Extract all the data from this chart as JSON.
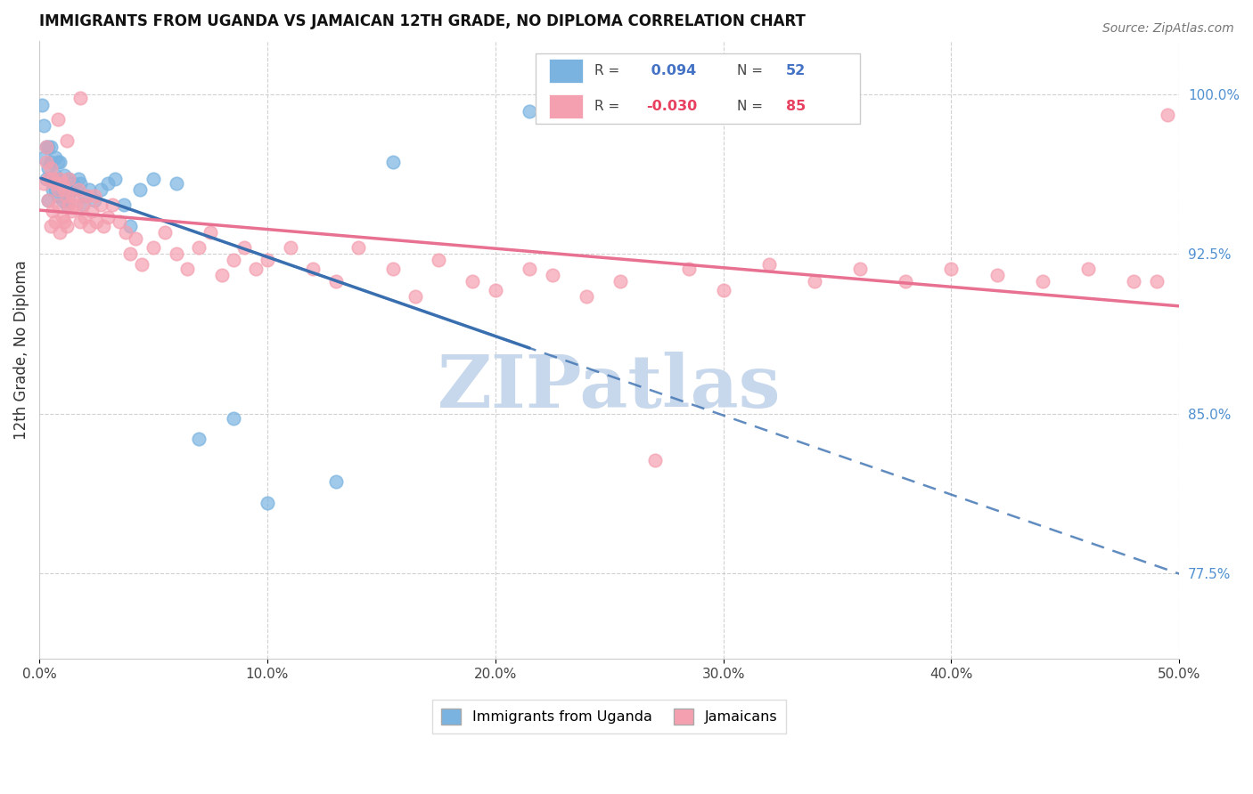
{
  "title": "IMMIGRANTS FROM UGANDA VS JAMAICAN 12TH GRADE, NO DIPLOMA CORRELATION CHART",
  "source": "Source: ZipAtlas.com",
  "ylabel_label": "12th Grade, No Diploma",
  "legend_label1": "Immigrants from Uganda",
  "legend_label2": "Jamaicans",
  "color_uganda": "#7ab3e0",
  "color_jamaica": "#f4a0b0",
  "color_trendline_uganda": "#3a6faf",
  "color_trendline_jamaica": "#e87090",
  "watermark_color": "#c8d8ec",
  "watermark_text": "ZIPatlas",
  "xmin": 0.0,
  "xmax": 0.5,
  "ymin": 0.735,
  "ymax": 1.025,
  "uganda_x": [
    0.001,
    0.002,
    0.002,
    0.003,
    0.003,
    0.004,
    0.004,
    0.004,
    0.005,
    0.005,
    0.005,
    0.006,
    0.006,
    0.007,
    0.007,
    0.007,
    0.008,
    0.008,
    0.008,
    0.009,
    0.009,
    0.01,
    0.01,
    0.011,
    0.011,
    0.012,
    0.012,
    0.013,
    0.013,
    0.014,
    0.015,
    0.016,
    0.017,
    0.018,
    0.019,
    0.02,
    0.022,
    0.024,
    0.027,
    0.03,
    0.033,
    0.037,
    0.04,
    0.044,
    0.05,
    0.06,
    0.07,
    0.085,
    0.1,
    0.13,
    0.155,
    0.215
  ],
  "uganda_y": [
    0.995,
    0.985,
    0.97,
    0.975,
    0.96,
    0.975,
    0.965,
    0.95,
    0.96,
    0.968,
    0.975,
    0.96,
    0.955,
    0.962,
    0.955,
    0.97,
    0.952,
    0.96,
    0.968,
    0.958,
    0.968,
    0.95,
    0.958,
    0.955,
    0.962,
    0.948,
    0.955,
    0.95,
    0.96,
    0.955,
    0.958,
    0.955,
    0.96,
    0.958,
    0.948,
    0.952,
    0.955,
    0.95,
    0.955,
    0.958,
    0.96,
    0.948,
    0.938,
    0.955,
    0.96,
    0.958,
    0.838,
    0.848,
    0.808,
    0.818,
    0.968,
    0.992
  ],
  "jamaica_x": [
    0.002,
    0.003,
    0.003,
    0.004,
    0.004,
    0.005,
    0.005,
    0.006,
    0.006,
    0.007,
    0.007,
    0.008,
    0.008,
    0.009,
    0.009,
    0.01,
    0.01,
    0.011,
    0.011,
    0.012,
    0.012,
    0.013,
    0.013,
    0.014,
    0.015,
    0.016,
    0.017,
    0.018,
    0.019,
    0.02,
    0.021,
    0.022,
    0.023,
    0.024,
    0.025,
    0.027,
    0.028,
    0.03,
    0.032,
    0.035,
    0.038,
    0.04,
    0.042,
    0.045,
    0.05,
    0.055,
    0.06,
    0.065,
    0.07,
    0.075,
    0.08,
    0.085,
    0.09,
    0.095,
    0.1,
    0.11,
    0.12,
    0.13,
    0.14,
    0.155,
    0.165,
    0.175,
    0.19,
    0.2,
    0.215,
    0.225,
    0.24,
    0.255,
    0.27,
    0.285,
    0.3,
    0.32,
    0.34,
    0.36,
    0.38,
    0.4,
    0.42,
    0.44,
    0.46,
    0.48,
    0.49,
    0.495,
    0.008,
    0.012,
    0.018
  ],
  "jamaica_y": [
    0.958,
    0.968,
    0.975,
    0.96,
    0.95,
    0.965,
    0.938,
    0.96,
    0.945,
    0.958,
    0.94,
    0.955,
    0.948,
    0.96,
    0.935,
    0.958,
    0.942,
    0.955,
    0.94,
    0.952,
    0.938,
    0.948,
    0.96,
    0.945,
    0.952,
    0.948,
    0.955,
    0.94,
    0.948,
    0.942,
    0.952,
    0.938,
    0.945,
    0.952,
    0.94,
    0.948,
    0.938,
    0.942,
    0.948,
    0.94,
    0.935,
    0.925,
    0.932,
    0.92,
    0.928,
    0.935,
    0.925,
    0.918,
    0.928,
    0.935,
    0.915,
    0.922,
    0.928,
    0.918,
    0.922,
    0.928,
    0.918,
    0.912,
    0.928,
    0.918,
    0.905,
    0.922,
    0.912,
    0.908,
    0.918,
    0.915,
    0.905,
    0.912,
    0.828,
    0.918,
    0.908,
    0.92,
    0.912,
    0.918,
    0.912,
    0.918,
    0.915,
    0.912,
    0.918,
    0.912,
    0.912,
    0.99,
    0.988,
    0.978,
    0.998
  ],
  "r_uganda": 0.094,
  "n_uganda": 52,
  "r_jamaica": -0.03,
  "n_jamaica": 85
}
